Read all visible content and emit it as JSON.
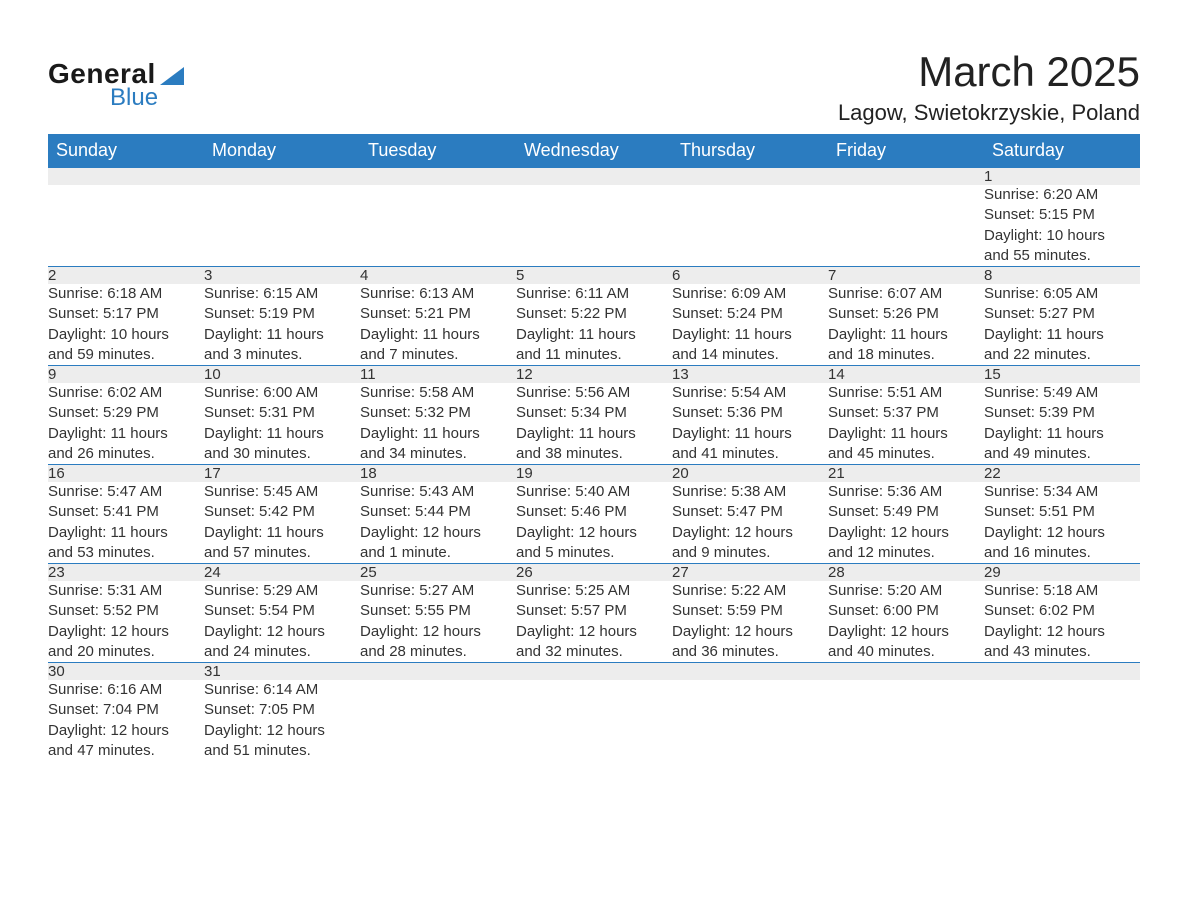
{
  "logo": {
    "text1": "General",
    "text2": "Blue",
    "accent_color": "#2b7cc0"
  },
  "title": "March 2025",
  "location": "Lagow, Swietokrzyskie, Poland",
  "day_headers": [
    "Sunday",
    "Monday",
    "Tuesday",
    "Wednesday",
    "Thursday",
    "Friday",
    "Saturday"
  ],
  "style": {
    "header_bg": "#2b7cc0",
    "header_fg": "#ffffff",
    "daynum_bg": "#ededed",
    "row_border": "#2b7cc0",
    "body_bg": "#ffffff",
    "text_color": "#333333",
    "title_fontsize": 42,
    "location_fontsize": 22,
    "th_fontsize": 18,
    "cell_fontsize": 15
  },
  "weeks": [
    [
      null,
      null,
      null,
      null,
      null,
      null,
      {
        "n": "1",
        "sunrise": "Sunrise: 6:20 AM",
        "sunset": "Sunset: 5:15 PM",
        "day1": "Daylight: 10 hours",
        "day2": "and 55 minutes."
      }
    ],
    [
      {
        "n": "2",
        "sunrise": "Sunrise: 6:18 AM",
        "sunset": "Sunset: 5:17 PM",
        "day1": "Daylight: 10 hours",
        "day2": "and 59 minutes."
      },
      {
        "n": "3",
        "sunrise": "Sunrise: 6:15 AM",
        "sunset": "Sunset: 5:19 PM",
        "day1": "Daylight: 11 hours",
        "day2": "and 3 minutes."
      },
      {
        "n": "4",
        "sunrise": "Sunrise: 6:13 AM",
        "sunset": "Sunset: 5:21 PM",
        "day1": "Daylight: 11 hours",
        "day2": "and 7 minutes."
      },
      {
        "n": "5",
        "sunrise": "Sunrise: 6:11 AM",
        "sunset": "Sunset: 5:22 PM",
        "day1": "Daylight: 11 hours",
        "day2": "and 11 minutes."
      },
      {
        "n": "6",
        "sunrise": "Sunrise: 6:09 AM",
        "sunset": "Sunset: 5:24 PM",
        "day1": "Daylight: 11 hours",
        "day2": "and 14 minutes."
      },
      {
        "n": "7",
        "sunrise": "Sunrise: 6:07 AM",
        "sunset": "Sunset: 5:26 PM",
        "day1": "Daylight: 11 hours",
        "day2": "and 18 minutes."
      },
      {
        "n": "8",
        "sunrise": "Sunrise: 6:05 AM",
        "sunset": "Sunset: 5:27 PM",
        "day1": "Daylight: 11 hours",
        "day2": "and 22 minutes."
      }
    ],
    [
      {
        "n": "9",
        "sunrise": "Sunrise: 6:02 AM",
        "sunset": "Sunset: 5:29 PM",
        "day1": "Daylight: 11 hours",
        "day2": "and 26 minutes."
      },
      {
        "n": "10",
        "sunrise": "Sunrise: 6:00 AM",
        "sunset": "Sunset: 5:31 PM",
        "day1": "Daylight: 11 hours",
        "day2": "and 30 minutes."
      },
      {
        "n": "11",
        "sunrise": "Sunrise: 5:58 AM",
        "sunset": "Sunset: 5:32 PM",
        "day1": "Daylight: 11 hours",
        "day2": "and 34 minutes."
      },
      {
        "n": "12",
        "sunrise": "Sunrise: 5:56 AM",
        "sunset": "Sunset: 5:34 PM",
        "day1": "Daylight: 11 hours",
        "day2": "and 38 minutes."
      },
      {
        "n": "13",
        "sunrise": "Sunrise: 5:54 AM",
        "sunset": "Sunset: 5:36 PM",
        "day1": "Daylight: 11 hours",
        "day2": "and 41 minutes."
      },
      {
        "n": "14",
        "sunrise": "Sunrise: 5:51 AM",
        "sunset": "Sunset: 5:37 PM",
        "day1": "Daylight: 11 hours",
        "day2": "and 45 minutes."
      },
      {
        "n": "15",
        "sunrise": "Sunrise: 5:49 AM",
        "sunset": "Sunset: 5:39 PM",
        "day1": "Daylight: 11 hours",
        "day2": "and 49 minutes."
      }
    ],
    [
      {
        "n": "16",
        "sunrise": "Sunrise: 5:47 AM",
        "sunset": "Sunset: 5:41 PM",
        "day1": "Daylight: 11 hours",
        "day2": "and 53 minutes."
      },
      {
        "n": "17",
        "sunrise": "Sunrise: 5:45 AM",
        "sunset": "Sunset: 5:42 PM",
        "day1": "Daylight: 11 hours",
        "day2": "and 57 minutes."
      },
      {
        "n": "18",
        "sunrise": "Sunrise: 5:43 AM",
        "sunset": "Sunset: 5:44 PM",
        "day1": "Daylight: 12 hours",
        "day2": "and 1 minute."
      },
      {
        "n": "19",
        "sunrise": "Sunrise: 5:40 AM",
        "sunset": "Sunset: 5:46 PM",
        "day1": "Daylight: 12 hours",
        "day2": "and 5 minutes."
      },
      {
        "n": "20",
        "sunrise": "Sunrise: 5:38 AM",
        "sunset": "Sunset: 5:47 PM",
        "day1": "Daylight: 12 hours",
        "day2": "and 9 minutes."
      },
      {
        "n": "21",
        "sunrise": "Sunrise: 5:36 AM",
        "sunset": "Sunset: 5:49 PM",
        "day1": "Daylight: 12 hours",
        "day2": "and 12 minutes."
      },
      {
        "n": "22",
        "sunrise": "Sunrise: 5:34 AM",
        "sunset": "Sunset: 5:51 PM",
        "day1": "Daylight: 12 hours",
        "day2": "and 16 minutes."
      }
    ],
    [
      {
        "n": "23",
        "sunrise": "Sunrise: 5:31 AM",
        "sunset": "Sunset: 5:52 PM",
        "day1": "Daylight: 12 hours",
        "day2": "and 20 minutes."
      },
      {
        "n": "24",
        "sunrise": "Sunrise: 5:29 AM",
        "sunset": "Sunset: 5:54 PM",
        "day1": "Daylight: 12 hours",
        "day2": "and 24 minutes."
      },
      {
        "n": "25",
        "sunrise": "Sunrise: 5:27 AM",
        "sunset": "Sunset: 5:55 PM",
        "day1": "Daylight: 12 hours",
        "day2": "and 28 minutes."
      },
      {
        "n": "26",
        "sunrise": "Sunrise: 5:25 AM",
        "sunset": "Sunset: 5:57 PM",
        "day1": "Daylight: 12 hours",
        "day2": "and 32 minutes."
      },
      {
        "n": "27",
        "sunrise": "Sunrise: 5:22 AM",
        "sunset": "Sunset: 5:59 PM",
        "day1": "Daylight: 12 hours",
        "day2": "and 36 minutes."
      },
      {
        "n": "28",
        "sunrise": "Sunrise: 5:20 AM",
        "sunset": "Sunset: 6:00 PM",
        "day1": "Daylight: 12 hours",
        "day2": "and 40 minutes."
      },
      {
        "n": "29",
        "sunrise": "Sunrise: 5:18 AM",
        "sunset": "Sunset: 6:02 PM",
        "day1": "Daylight: 12 hours",
        "day2": "and 43 minutes."
      }
    ],
    [
      {
        "n": "30",
        "sunrise": "Sunrise: 6:16 AM",
        "sunset": "Sunset: 7:04 PM",
        "day1": "Daylight: 12 hours",
        "day2": "and 47 minutes."
      },
      {
        "n": "31",
        "sunrise": "Sunrise: 6:14 AM",
        "sunset": "Sunset: 7:05 PM",
        "day1": "Daylight: 12 hours",
        "day2": "and 51 minutes."
      },
      null,
      null,
      null,
      null,
      null
    ]
  ]
}
